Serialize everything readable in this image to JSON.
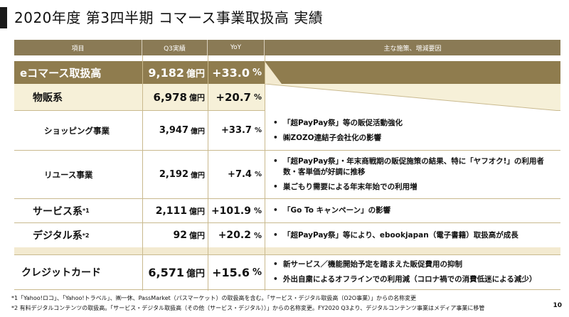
{
  "title": "2020年度 第3四半期 コマース事業取扱高 実績",
  "header": {
    "item": "項目",
    "q3": "Q3実績",
    "yoy": "YoY",
    "factors": "主な施策、増減要因"
  },
  "rows": {
    "ecommerce": {
      "label": "eコマース取扱高",
      "value": "9,182",
      "unit": "億円",
      "yoy": "+33.0",
      "pct": "%"
    },
    "retail": {
      "label": "物販系",
      "value": "6,978",
      "unit": "億円",
      "yoy": "+20.7",
      "pct": "%"
    },
    "shopping": {
      "label": "ショッピング事業",
      "value": "3,947",
      "unit": "億円",
      "yoy": "+33.7",
      "pct": "%",
      "notes": [
        "「超PayPay祭」等の販促活動強化",
        "㈱ZOZO連結子会社化の影響"
      ]
    },
    "reuse": {
      "label": "リユース事業",
      "value": "2,192",
      "unit": "億円",
      "yoy": "+7.4",
      "pct": "%",
      "notes": [
        "「超PayPay祭」・年末商戦期の販促施策の結果、特に「ヤフオク!」の利用者数・客単価が好調に推移",
        "巣ごもり需要による年末年始での利用増"
      ]
    },
    "service": {
      "label": "サービス系",
      "sup": "*1",
      "value": "2,111",
      "unit": "億円",
      "yoy": "+101.9",
      "pct": "%",
      "notes": [
        "「Go To キャンペーン」の影響"
      ]
    },
    "digital": {
      "label": "デジタル系",
      "sup": "*2",
      "value": "92",
      "unit": "億円",
      "yoy": "+20.2",
      "pct": "%",
      "notes": [
        "「超PayPay祭」等により、ebookjapan（電子書籍）取扱高が成長"
      ]
    },
    "credit": {
      "label": "クレジットカード",
      "value": "6,571",
      "unit": "億円",
      "yoy": "+15.6",
      "pct": "%",
      "notes": [
        "新サービス／機能開始予定を踏まえた販促費用の抑制",
        "外出自粛によるオフラインでの利用減（コロナ禍での消費低迷による減少）"
      ]
    }
  },
  "footnotes": [
    "*1「Yahoo!ロコ」、「Yahoo!トラベル」、㈱一休、PassMarket（パスマーケット）の取扱高を含む。「サービス・デジタル取扱高（O2O事業）」からの名称変更",
    "*2 有料デジタルコンテンツの取扱高。「サービス・デジタル取扱高（その他（サービス・デジタル））」からの名称変更。FY2020 Q3より、デジタルコンテンツ事業はメディア事業に移管"
  ],
  "page_number": "10",
  "colors": {
    "header": "#8a7a55",
    "ecommerce_row": "#8f7c4e",
    "retail_row": "#f6f0d8",
    "border": "#c9b98e"
  }
}
